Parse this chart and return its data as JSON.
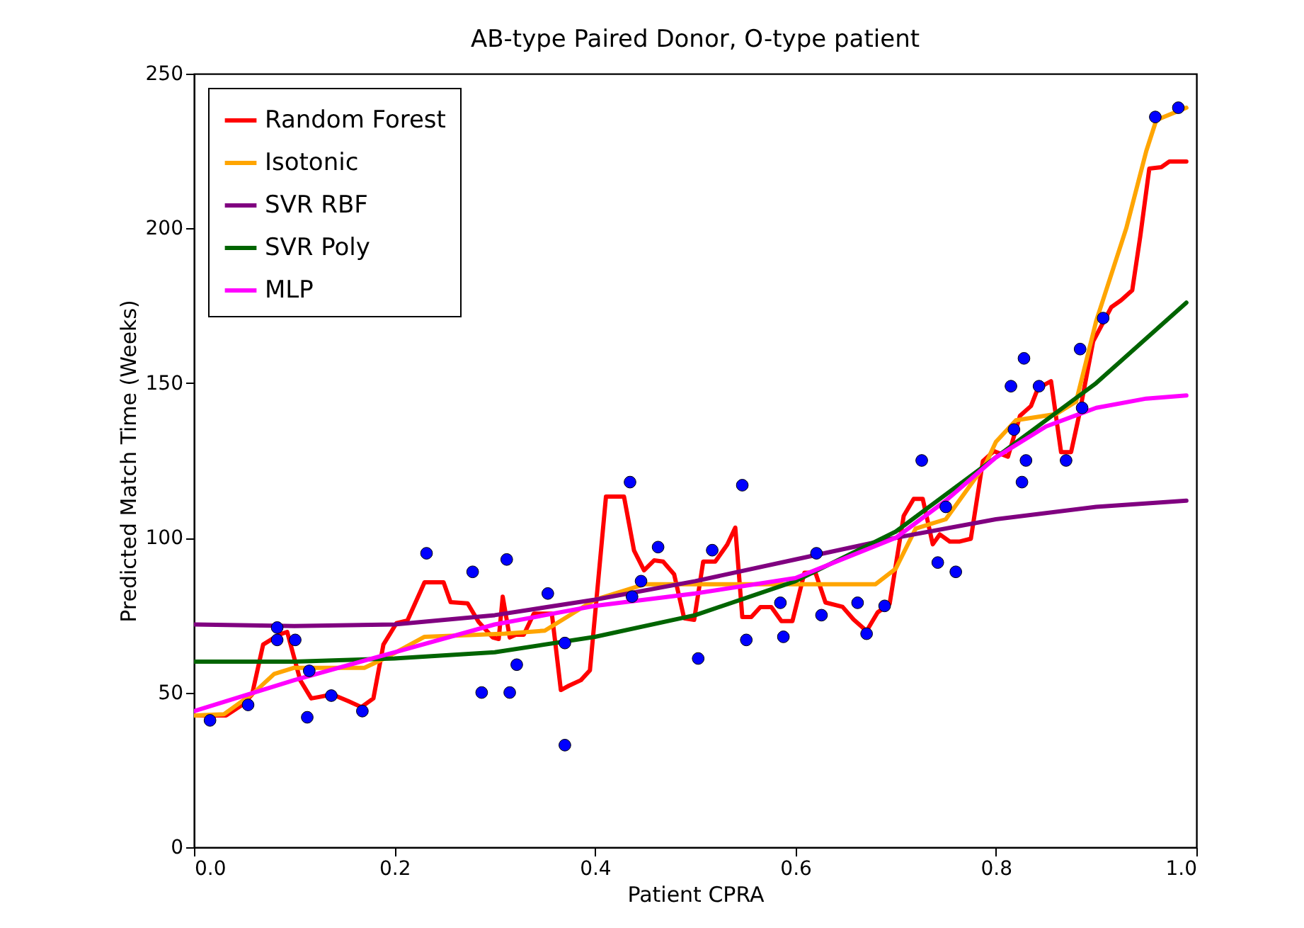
{
  "chart_data": {
    "type": "line",
    "title": "AB-type Paired Donor, O-type patient",
    "xlabel": "Patient CPRA",
    "ylabel": "Predicted Match Time (Weeks)",
    "xlim": [
      0,
      1
    ],
    "ylim": [
      0,
      250
    ],
    "xticks": [
      {
        "value": 0,
        "label": "0.0"
      },
      0.2,
      0.4,
      0.6,
      0.8,
      {
        "value": 1,
        "label": "1.0"
      }
    ],
    "yticks": [
      0,
      50,
      100,
      150,
      200,
      250
    ],
    "grid": false,
    "legend": "top left",
    "line_style": "solid",
    "series": [
      {
        "type": "line",
        "name": "Random Forest",
        "color": "#ff0000",
        "x": [
          0,
          0.032,
          0.049,
          0.058,
          0.069,
          0.085,
          0.093,
          0.106,
          0.117,
          0.124,
          0.138,
          0.154,
          0.167,
          0.179,
          0.189,
          0.202,
          0.213,
          0.23,
          0.249,
          0.256,
          0.273,
          0.284,
          0.298,
          0.304,
          0.308,
          0.315,
          0.321,
          0.329,
          0.339,
          0.357,
          0.366,
          0.374,
          0.386,
          0.395,
          0.411,
          0.429,
          0.439,
          0.449,
          0.459,
          0.468,
          0.479,
          0.489,
          0.499,
          0.508,
          0.52,
          0.532,
          0.54,
          0.547,
          0.556,
          0.565,
          0.576,
          0.586,
          0.597,
          0.609,
          0.62,
          0.63,
          0.647,
          0.658,
          0.671,
          0.682,
          0.694,
          0.708,
          0.718,
          0.727,
          0.737,
          0.744,
          0.754,
          0.764,
          0.775,
          0.787,
          0.798,
          0.812,
          0.824,
          0.835,
          0.842,
          0.855,
          0.865,
          0.875,
          0.883,
          0.897,
          0.915,
          0.925,
          0.936,
          0.944,
          0.953,
          0.965,
          0.973,
          0.99
        ],
        "values": [
          42.6,
          42.6,
          46.2,
          49.4,
          65.5,
          68.7,
          69.6,
          54,
          48.1,
          48.5,
          49.4,
          47.2,
          45.3,
          48.1,
          65.5,
          72.4,
          73.3,
          85.6,
          85.6,
          79.2,
          78.8,
          72.8,
          67.8,
          67.3,
          81,
          67.8,
          68.7,
          68.7,
          75.5,
          75.5,
          50.8,
          52.2,
          54,
          57.2,
          113.3,
          113.3,
          95.9,
          89.5,
          92.7,
          92.3,
          88.2,
          74,
          73.5,
          92.3,
          92.3,
          97.8,
          103.3,
          74.4,
          74.4,
          77.6,
          77.6,
          73.1,
          73.1,
          88.7,
          88.7,
          79.1,
          77.7,
          73.6,
          69.9,
          75.9,
          78.7,
          107.1,
          112.6,
          112.6,
          97.9,
          101.1,
          98.8,
          98.8,
          99.7,
          124.8,
          128,
          126.2,
          139.4,
          142.6,
          148.4,
          150.6,
          127.7,
          127.7,
          139.6,
          163.5,
          174.5,
          176.8,
          180,
          197.4,
          219.3,
          219.8,
          221.6,
          221.6
        ]
      },
      {
        "type": "line",
        "name": "Isotonic",
        "color": "#ffa500",
        "x": [
          0,
          0.03,
          0.06,
          0.08,
          0.1,
          0.17,
          0.19,
          0.23,
          0.31,
          0.35,
          0.4,
          0.45,
          0.58,
          0.68,
          0.7,
          0.72,
          0.75,
          0.77,
          0.79,
          0.8,
          0.82,
          0.86,
          0.88,
          0.9,
          0.93,
          0.95,
          0.96,
          0.99
        ],
        "values": [
          42.6,
          43,
          50,
          56,
          58,
          58,
          61,
          68,
          69,
          70,
          80,
          85,
          85,
          85,
          90,
          103,
          106,
          115,
          124,
          131,
          138,
          140,
          144,
          170,
          200,
          225,
          235,
          239
        ]
      },
      {
        "type": "line",
        "name": "SVR RBF",
        "color": "#800080",
        "x": [
          0,
          0.1,
          0.2,
          0.3,
          0.4,
          0.5,
          0.6,
          0.7,
          0.8,
          0.9,
          0.99
        ],
        "values": [
          72,
          71.5,
          72,
          75,
          80,
          86,
          93,
          100,
          106,
          110,
          112
        ]
      },
      {
        "type": "line",
        "name": "SVR Poly",
        "color": "#006400",
        "x": [
          0,
          0.1,
          0.2,
          0.3,
          0.4,
          0.5,
          0.6,
          0.7,
          0.8,
          0.9,
          0.99
        ],
        "values": [
          60,
          60,
          61,
          63,
          68,
          75,
          86,
          102,
          126,
          150,
          176
        ]
      },
      {
        "type": "line",
        "name": "MLP",
        "color": "#ff00ff",
        "x": [
          0,
          0.1,
          0.2,
          0.3,
          0.4,
          0.5,
          0.6,
          0.7,
          0.75,
          0.8,
          0.85,
          0.9,
          0.95,
          0.99
        ],
        "values": [
          44,
          54,
          63,
          72,
          78,
          82,
          87,
          100,
          112,
          126,
          136,
          142,
          145,
          146
        ]
      },
      {
        "type": "scatter",
        "color": "#0000ff",
        "marker": "circle",
        "x": [
          0.016,
          0.054,
          0.083,
          0.083,
          0.101,
          0.113,
          0.115,
          0.137,
          0.168,
          0.232,
          0.278,
          0.287,
          0.312,
          0.315,
          0.322,
          0.353,
          0.37,
          0.37,
          0.435,
          0.437,
          0.446,
          0.463,
          0.503,
          0.517,
          0.547,
          0.551,
          0.585,
          0.588,
          0.621,
          0.626,
          0.662,
          0.671,
          0.689,
          0.726,
          0.742,
          0.75,
          0.76,
          0.815,
          0.818,
          0.826,
          0.828,
          0.83,
          0.843,
          0.87,
          0.884,
          0.886,
          0.907,
          0.959,
          0.982
        ],
        "values": [
          41,
          46,
          71,
          67,
          67,
          42,
          57,
          49,
          44,
          95,
          89,
          50,
          93,
          50,
          59,
          82,
          66,
          33,
          118,
          81,
          86,
          97,
          61,
          96,
          117,
          67,
          79,
          68,
          95,
          75,
          79,
          69,
          78,
          125,
          92,
          110,
          89,
          149,
          135,
          118,
          158,
          125,
          149,
          125,
          161,
          142,
          171,
          236,
          239
        ]
      }
    ]
  }
}
